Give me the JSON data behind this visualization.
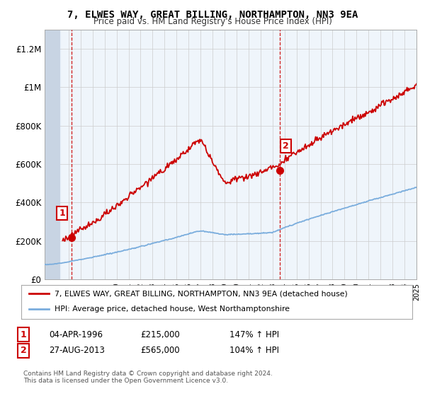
{
  "title": "7, ELWES WAY, GREAT BILLING, NORTHAMPTON, NN3 9EA",
  "subtitle": "Price paid vs. HM Land Registry's House Price Index (HPI)",
  "legend_line1": "7, ELWES WAY, GREAT BILLING, NORTHAMPTON, NN3 9EA (detached house)",
  "legend_line2": "HPI: Average price, detached house, West Northamptonshire",
  "transaction1_date": "04-APR-1996",
  "transaction1_price": "£215,000",
  "transaction1_hpi": "147% ↑ HPI",
  "transaction2_date": "27-AUG-2013",
  "transaction2_price": "£565,000",
  "transaction2_hpi": "104% ↑ HPI",
  "footer": "Contains HM Land Registry data © Crown copyright and database right 2024.\nThis data is licensed under the Open Government Licence v3.0.",
  "hpi_color": "#7aaddd",
  "price_color": "#cc0000",
  "dot_color": "#cc0000",
  "dashed_color": "#cc0000",
  "ylim": [
    0,
    1300000
  ],
  "yticks": [
    0,
    200000,
    400000,
    600000,
    800000,
    1000000,
    1200000
  ],
  "ytick_labels": [
    "£0",
    "£200K",
    "£400K",
    "£600K",
    "£800K",
    "£1M",
    "£1.2M"
  ],
  "xstart_year": 1994,
  "xend_year": 2025,
  "t1_year": 1996.25,
  "t1_price": 215000,
  "t2_year": 2013.58,
  "t2_price": 565000
}
